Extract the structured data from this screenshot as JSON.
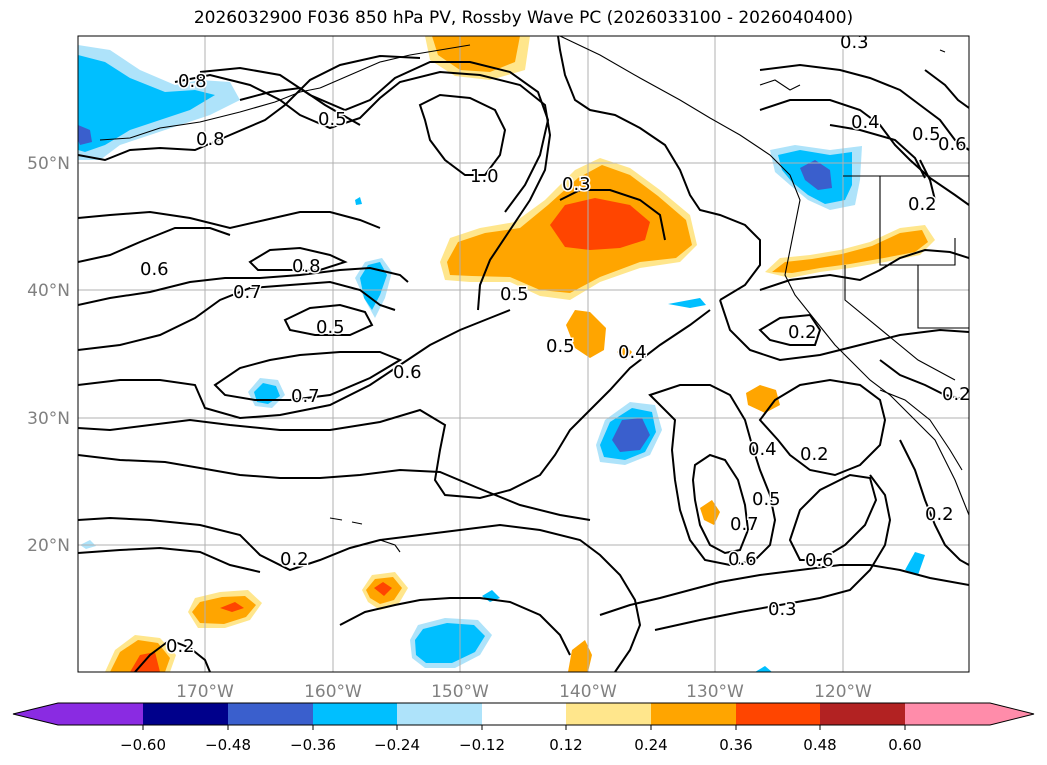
{
  "title": "2026032900 F036 850 hPa PV, Rossby Wave PC (2026033100 - 2026040400)",
  "map": {
    "lat_labels": [
      "50°N",
      "40°N",
      "30°N",
      "20°N"
    ],
    "lon_labels": [
      "170°W",
      "160°W",
      "150°W",
      "140°W",
      "130°W",
      "120°W"
    ],
    "contour_labels": [
      "0.8",
      "0.5",
      "0.8",
      "1.0",
      "0.3",
      "0.3",
      "0.4",
      "0.5",
      "0.6",
      "0.2",
      "0.6",
      "0.8",
      "0.7",
      "0.5",
      "0.5",
      "0.5",
      "0.6",
      "0.7",
      "0.4",
      "0.2",
      "0.2",
      "0.4",
      "0.5",
      "0.2",
      "0.7",
      "0.6",
      "0.6",
      "0.3",
      "0.2",
      "0.2",
      "0.2"
    ]
  },
  "colorbar": {
    "ticks": [
      "−0.60",
      "−0.48",
      "−0.36",
      "−0.24",
      "−0.12",
      "0.12",
      "0.24",
      "0.36",
      "0.48",
      "0.60"
    ],
    "colors": [
      "#8a2be2",
      "#00008b",
      "#3a5fcd",
      "#00bfff",
      "#aee3fa",
      "#ffffff",
      "#ffe68c",
      "#ffa500",
      "#ff4500",
      "#b22222",
      "#ff8caa"
    ]
  }
}
